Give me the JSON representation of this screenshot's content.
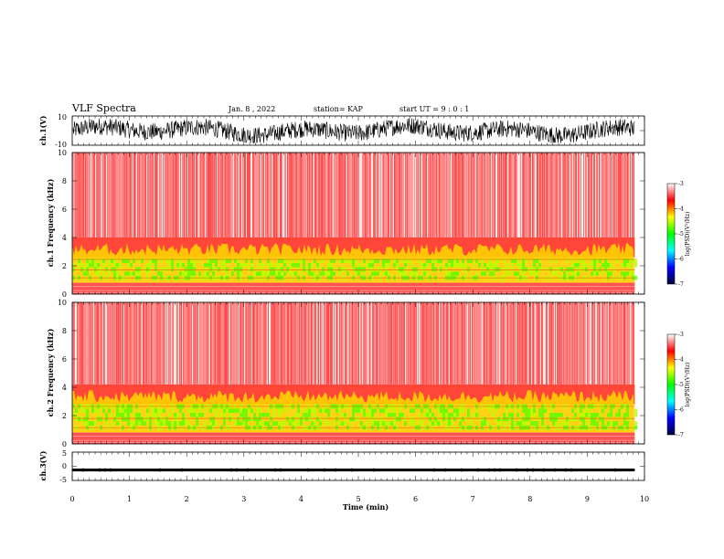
{
  "header": {
    "title": "VLF Spectra",
    "date": "Jan. 8  , 2022",
    "station": "station= KAP",
    "start_ut": "start  UT  =   9 : 0  : 1"
  },
  "chart_data": [
    {
      "type": "line",
      "panel": "ch1-waveform",
      "ylabel": "ch.1(V)",
      "ylim": [
        -10,
        10
      ],
      "yticks": [
        "10",
        "-10"
      ],
      "xlim": [
        0,
        10
      ],
      "data_extent_min": 9.83,
      "signal": "noisy waveform, range approx -8 to 8 V",
      "amplitude": 6
    },
    {
      "type": "heatmap",
      "panel": "ch1-spectrogram",
      "ylabel": "ch.1  Frequency  (kHz)",
      "ylim": [
        0,
        10
      ],
      "yticks": [
        "0",
        "2",
        "4",
        "6",
        "8",
        "10"
      ],
      "xlim": [
        0,
        10
      ],
      "data_extent_min": 9.83,
      "bands": [
        {
          "from_khz": 0,
          "to_khz": 0.8,
          "level": "red"
        },
        {
          "from_khz": 0.8,
          "to_khz": 2.6,
          "level": "green-yellow"
        },
        {
          "from_khz": 2.6,
          "to_khz": 4.0,
          "level": "dense red"
        },
        {
          "from_khz": 4.0,
          "to_khz": 10,
          "level": "sparse red"
        }
      ],
      "colorbar": {
        "label": "log(PSD)(V²/Hz)",
        "range": [
          -7,
          -3
        ],
        "ticks": [
          "-3",
          "-4",
          "-5",
          "-6",
          "-7"
        ],
        "colors": [
          "#ffffff",
          "#ff0000",
          "#ffff00",
          "#00ff00",
          "#00ffff",
          "#0000ff",
          "#000040"
        ]
      }
    },
    {
      "type": "heatmap",
      "panel": "ch2-spectrogram",
      "ylabel": "ch.2  Frequency  (kHz)",
      "ylim": [
        0,
        10
      ],
      "yticks": [
        "0",
        "2",
        "4",
        "6",
        "8",
        "10"
      ],
      "xlim": [
        0,
        10
      ],
      "data_extent_min": 9.83,
      "bands": [
        {
          "from_khz": 0,
          "to_khz": 0.8,
          "level": "red"
        },
        {
          "from_khz": 0.8,
          "to_khz": 2.8,
          "level": "green-yellow"
        },
        {
          "from_khz": 2.8,
          "to_khz": 4.2,
          "level": "dense red"
        },
        {
          "from_khz": 4.2,
          "to_khz": 10,
          "level": "sparse red"
        }
      ],
      "colorbar": {
        "label": "log(PSD)(V²/Hz)",
        "range": [
          -7,
          -3
        ],
        "ticks": [
          "-3",
          "-4",
          "-5",
          "-6",
          "-7"
        ],
        "colors": [
          "#ffffff",
          "#ff0000",
          "#ffff00",
          "#00ff00",
          "#00ffff",
          "#0000ff",
          "#000040"
        ]
      }
    },
    {
      "type": "line",
      "panel": "ch3-waveform",
      "ylabel": "ch.3(V)",
      "ylim": [
        -5,
        5
      ],
      "yticks": [
        "5",
        "0",
        "-5"
      ],
      "xlim": [
        0,
        10
      ],
      "data_extent_min": 9.83,
      "signal": "thick near-constant band around -1.3 V",
      "level_v": -1.3,
      "amplitude": 0.5
    }
  ],
  "x_axis": {
    "label": "Time  (min)",
    "ticks": [
      "0",
      "1",
      "2",
      "3",
      "4",
      "5",
      "6",
      "7",
      "8",
      "9",
      "10"
    ]
  }
}
